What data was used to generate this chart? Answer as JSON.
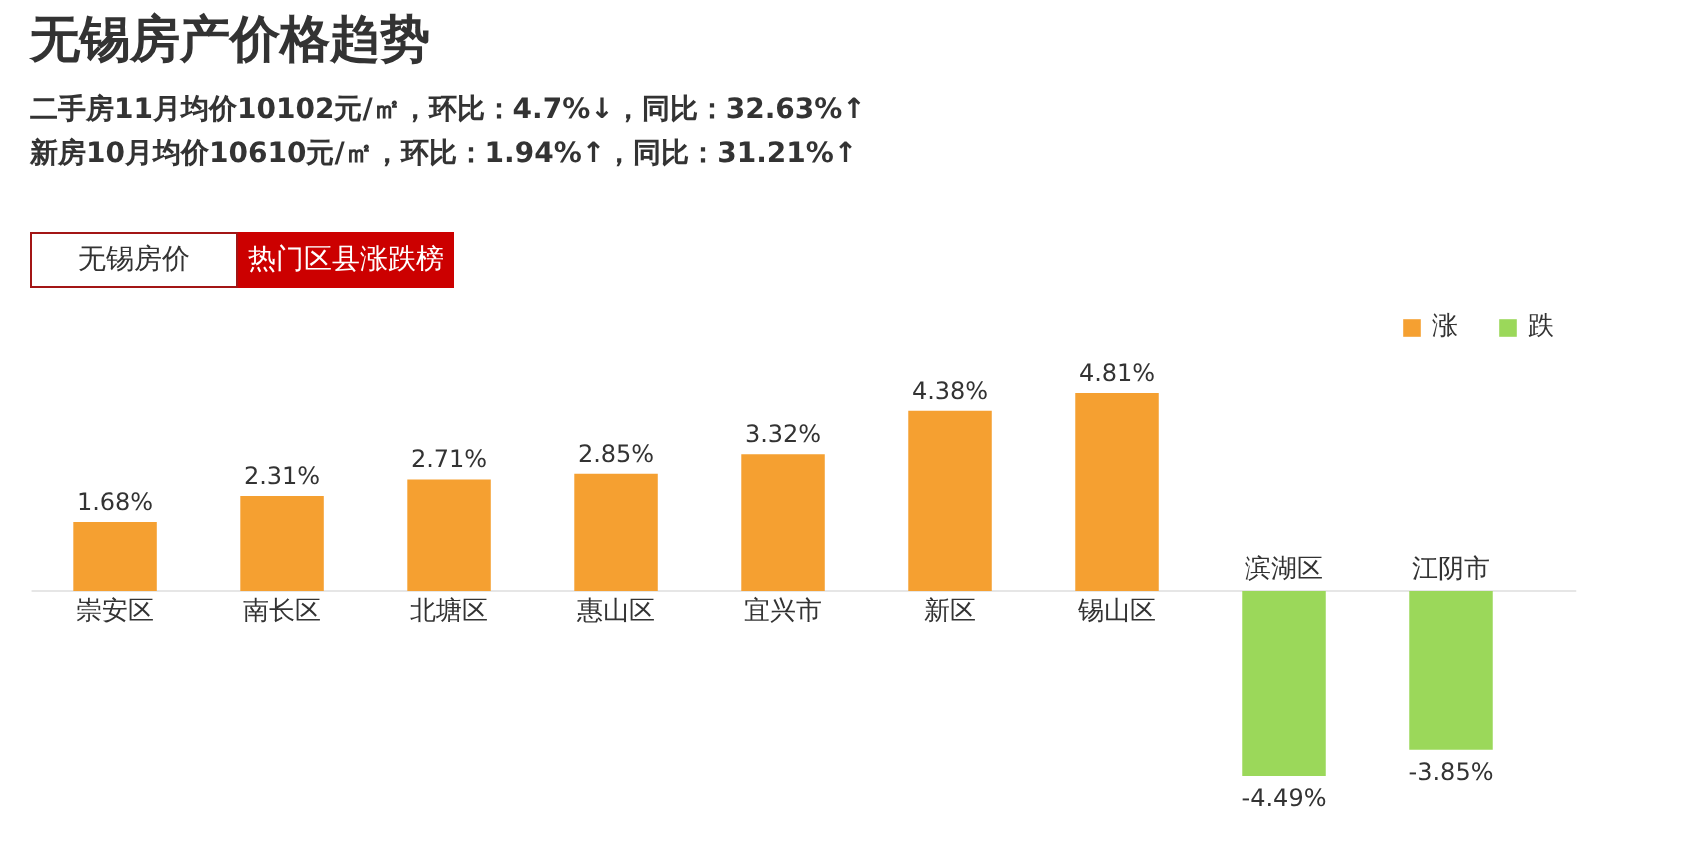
{
  "chart_data": {
    "type": "bar",
    "title": "无锡房产价格趋势",
    "subtitle": "二手房11月均价10102元/㎡，环比：4.7%↓，同比：32.63%↑\n新房10月均价10610元/㎡，环比：1.94%↑，同比：31.21%↑",
    "annotations": [
      "无锡房价",
      "热门区县涨跌榜"
    ],
    "categories": [
      "崇安区",
      "南长区",
      "北塘区",
      "惠山区",
      "宜兴市",
      "新区",
      "锡山区",
      "滨湖区",
      "江阴市"
    ],
    "series": [
      {
        "name": "涨",
        "color": "#f5a031",
        "values": [
          1.68,
          2.31,
          2.71,
          2.85,
          3.32,
          4.38,
          4.81,
          null,
          null
        ],
        "value_labels": [
          "1.68%",
          "2.31%",
          "2.71%",
          "2.85%",
          "3.32%",
          "4.38%",
          "4.81%",
          null,
          null
        ]
      },
      {
        "name": "跌",
        "color": "#9bd85a",
        "values": [
          null,
          null,
          null,
          null,
          null,
          null,
          null,
          -4.49,
          -3.85
        ],
        "value_labels": [
          null,
          null,
          null,
          null,
          null,
          null,
          null,
          "-4.49%",
          "-3.85%"
        ]
      }
    ],
    "legend": "top right"
  }
}
